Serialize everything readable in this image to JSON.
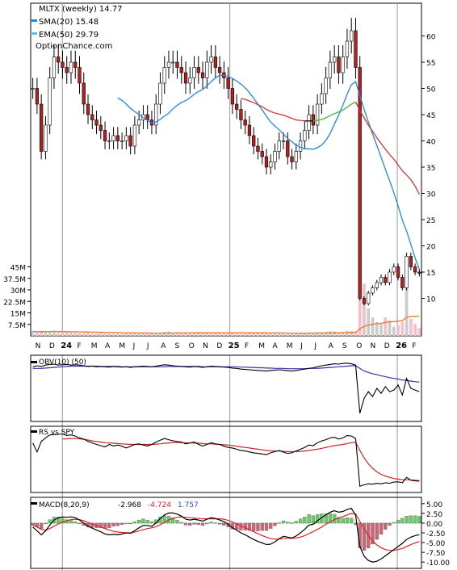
{
  "chart_data": {
    "type": "candlestick",
    "ticker": "MLTX",
    "period": "weekly",
    "last": "14.77",
    "header": {
      "title": "MLTX (weekly) 14.77",
      "sma_label": "SMA(20) 15.48",
      "ema_label": "EMA(50) 29.79",
      "source": "OptionChance.com"
    },
    "colors": {
      "up": "#ffffff",
      "down": "#b22222",
      "vol_up": "#cccccc",
      "vol_down": "#f2c0c8",
      "sma": "#2288dd",
      "ema_up": "#33bb33",
      "ema_dn": "#cc3333",
      "ema_flat": "#000000",
      "vol_avg": "#ee7722",
      "macd_pos": "#66cc66",
      "macd_neg": "#cc6677",
      "obv_sig": "#3333aa"
    },
    "price_axis": {
      "min": 5,
      "max": 65,
      "ticks": [
        "10",
        "15",
        "20",
        "25",
        "30",
        "35",
        "40",
        "45",
        "50",
        "55",
        "60"
      ]
    },
    "volume_axis": {
      "max_m": 50,
      "ticks": [
        "7.5M",
        "15M",
        "22.5M",
        "30M",
        "37.5M",
        "45M"
      ]
    },
    "x_axis": {
      "labels": [
        "N",
        "D",
        "24",
        "F",
        "M",
        "A",
        "M",
        "J",
        "J",
        "A",
        "S",
        "O",
        "N",
        "D",
        "25",
        "F",
        "M",
        "A",
        "M",
        "J",
        "J",
        "A",
        "S",
        "O",
        "N",
        "D",
        "26",
        "F"
      ],
      "bold": [
        "24",
        "25",
        "26"
      ]
    },
    "closes": [
      50,
      47,
      38,
      43,
      52,
      56,
      55,
      54,
      53,
      55,
      54,
      51,
      47,
      45,
      44,
      43,
      42,
      40,
      40,
      41,
      40,
      40,
      41,
      39,
      43,
      44,
      45,
      44,
      43,
      47,
      51,
      54,
      55,
      55,
      54,
      53,
      51,
      52,
      54,
      53,
      52,
      55,
      56,
      54,
      53,
      52,
      50,
      47,
      46,
      44,
      43,
      41,
      39,
      38,
      37,
      35,
      36,
      38,
      40,
      40,
      37,
      36,
      38,
      40,
      42,
      45,
      43,
      47,
      49,
      52,
      55,
      56,
      53,
      56,
      59,
      61,
      54,
      10,
      9,
      11,
      12,
      13,
      14,
      13,
      15,
      16,
      14,
      12,
      18,
      16,
      15,
      14.77
    ],
    "sma20": [
      null,
      null,
      null,
      null,
      null,
      null,
      null,
      null,
      null,
      null,
      null,
      null,
      null,
      null,
      null,
      null,
      null,
      null,
      null,
      null,
      48.2,
      47.7,
      47.0,
      46.2,
      45.6,
      45.0,
      44.4,
      43.9,
      43.4,
      43.6,
      44.1,
      44.7,
      45.3,
      46.1,
      46.8,
      47.3,
      47.7,
      48.2,
      48.9,
      49.4,
      49.8,
      50.5,
      51.3,
      52.0,
      52.5,
      52.5,
      52.3,
      51.9,
      51.4,
      50.8,
      50.1,
      49.2,
      48.1,
      47.0,
      45.9,
      44.7,
      43.6,
      42.8,
      42.1,
      41.3,
      40.5,
      39.8,
      39.2,
      38.8,
      38.5,
      38.5,
      38.4,
      38.7,
      39.2,
      40.1,
      41.4,
      43.2,
      44.9,
      46.8,
      48.9,
      50.7,
      51.3,
      48.6,
      46.0,
      43.6,
      41.3,
      39.1,
      36.9,
      34.6,
      32.4,
      30.1,
      27.6,
      24.9,
      22.8,
      20.3,
      17.7,
      15.48
    ],
    "ema50": [
      null,
      null,
      null,
      null,
      null,
      null,
      null,
      null,
      null,
      null,
      null,
      null,
      null,
      null,
      null,
      null,
      null,
      null,
      null,
      null,
      null,
      null,
      null,
      null,
      null,
      null,
      null,
      null,
      null,
      null,
      null,
      null,
      null,
      null,
      null,
      null,
      null,
      null,
      null,
      null,
      null,
      null,
      null,
      null,
      null,
      null,
      null,
      null,
      null,
      48.1,
      47.9,
      47.6,
      47.3,
      46.9,
      46.5,
      46.0,
      45.6,
      45.3,
      45.1,
      44.9,
      44.6,
      44.3,
      44.0,
      43.9,
      43.8,
      43.8,
      43.8,
      43.9,
      44.1,
      44.4,
      44.8,
      45.2,
      45.5,
      45.9,
      46.4,
      47.0,
      47.4,
      45.8,
      44.4,
      43.0,
      41.8,
      40.6,
      39.5,
      38.4,
      37.4,
      36.5,
      35.4,
      34.3,
      33.5,
      32.6,
      31.4,
      29.79
    ],
    "volume_m": [
      3,
      2.5,
      2.8,
      2.6,
      3.1,
      3.4,
      2.2,
      2.4,
      2.6,
      2.2,
      2.5,
      1.9,
      1.8,
      2.1,
      1.6,
      1.7,
      2.0,
      1.5,
      1.6,
      1.4,
      1.6,
      1.5,
      1.8,
      1.6,
      2.2,
      1.9,
      2.1,
      1.7,
      1.8,
      1.6,
      2.0,
      2.6,
      2.8,
      2.1,
      2.4,
      1.9,
      1.8,
      1.6,
      2.3,
      2.4,
      1.8,
      2.5,
      2.2,
      1.9,
      2.1,
      1.7,
      1.9,
      1.8,
      2.2,
      1.6,
      1.8,
      1.7,
      2.1,
      1.9,
      1.6,
      1.8,
      1.5,
      1.7,
      1.9,
      1.6,
      1.4,
      1.5,
      1.8,
      2.0,
      1.7,
      2.3,
      1.9,
      2.4,
      2.2,
      2.6,
      3.0,
      2.8,
      2.4,
      2.7,
      3.3,
      3.1,
      2.9,
      48,
      34,
      18,
      12,
      9,
      8,
      12,
      10,
      6,
      7,
      9,
      46,
      11,
      8,
      5
    ],
    "macd": {
      "label": "MACD(8,20,9)",
      "values": [
        "-2.968",
        "-4.724",
        "1.757"
      ],
      "axis_ticks": [
        "5.00",
        "2.50",
        "0.00",
        "-2.50",
        "-5.00",
        "-7.50",
        "-10.00"
      ],
      "range": [
        -11,
        6
      ],
      "line": [
        -1,
        -2,
        -3,
        -2,
        -0.5,
        0.8,
        1.4,
        1.6,
        1.5,
        1.6,
        1.4,
        0.8,
        0,
        -0.8,
        -1.3,
        -1.8,
        -2.2,
        -2.8,
        -3,
        -2.9,
        -3,
        -2.8,
        -2.5,
        -2.6,
        -1.9,
        -1.2,
        -0.6,
        -0.6,
        -0.8,
        0,
        1.2,
        2.1,
        2.6,
        2.6,
        2.3,
        1.8,
        1.0,
        0.8,
        1.0,
        0.8,
        0.5,
        1.0,
        1.4,
        1.2,
        0.8,
        0.4,
        -0.3,
        -1.2,
        -1.8,
        -2.5,
        -3.0,
        -3.6,
        -4.2,
        -4.7,
        -5.1,
        -5.5,
        -5.4,
        -4.8,
        -4.0,
        -3.4,
        -3.6,
        -3.8,
        -3.3,
        -2.5,
        -1.6,
        -0.5,
        -0.3,
        0.6,
        1.4,
        2.1,
        2.8,
        3.2,
        2.8,
        3.0,
        3.5,
        3.8,
        2.0,
        -6,
        -8.5,
        -9.6,
        -10.0,
        -9.8,
        -9.2,
        -8.4,
        -7.6,
        -6.8,
        -6.0,
        -5.2,
        -4.2,
        -3.6,
        -3.2,
        -2.968
      ],
      "signal": [
        -0.5,
        -1,
        -1.6,
        -1.8,
        -1.4,
        -0.8,
        -0.2,
        0.3,
        0.6,
        0.9,
        1.0,
        0.9,
        0.6,
        0.2,
        -0.2,
        -0.6,
        -1.0,
        -1.4,
        -1.8,
        -2.1,
        -2.3,
        -2.4,
        -2.5,
        -2.5,
        -2.3,
        -2.0,
        -1.7,
        -1.4,
        -1.2,
        -0.9,
        -0.4,
        0.2,
        0.8,
        1.2,
        1.5,
        1.6,
        1.5,
        1.4,
        1.3,
        1.2,
        1.1,
        1.1,
        1.1,
        1.1,
        1.1,
        1.0,
        0.7,
        0.3,
        -0.2,
        -0.7,
        -1.2,
        -1.7,
        -2.2,
        -2.7,
        -3.2,
        -3.6,
        -4.0,
        -4.1,
        -4.1,
        -4.0,
        -3.9,
        -3.9,
        -3.8,
        -3.6,
        -3.2,
        -2.7,
        -2.2,
        -1.6,
        -1.0,
        -0.3,
        0.3,
        0.9,
        1.3,
        1.7,
        2.1,
        2.5,
        2.4,
        0.4,
        -1.5,
        -3.2,
        -4.6,
        -5.6,
        -6.3,
        -6.8,
        -7.0,
        -7.0,
        -6.8,
        -6.5,
        -6.0,
        -5.5,
        -5.1,
        -4.724
      ]
    },
    "obv": {
      "label": "OBV(10) (50)",
      "line": [
        0.55,
        0.58,
        0.56,
        0.6,
        0.62,
        0.63,
        0.6,
        0.61,
        0.62,
        0.6,
        0.61,
        0.6,
        0.58,
        0.56,
        0.57,
        0.55,
        0.56,
        0.55,
        0.54,
        0.56,
        0.55,
        0.54,
        0.55,
        0.53,
        0.55,
        0.56,
        0.57,
        0.56,
        0.55,
        0.57,
        0.59,
        0.61,
        0.6,
        0.58,
        0.57,
        0.56,
        0.55,
        0.54,
        0.56,
        0.55,
        0.53,
        0.55,
        0.57,
        0.56,
        0.55,
        0.54,
        0.53,
        0.51,
        0.5,
        0.48,
        0.47,
        0.46,
        0.45,
        0.44,
        0.43,
        0.42,
        0.44,
        0.45,
        0.46,
        0.45,
        0.43,
        0.42,
        0.44,
        0.46,
        0.48,
        0.5,
        0.52,
        0.55,
        0.58,
        0.6,
        0.62,
        0.64,
        0.63,
        0.65,
        0.66,
        0.64,
        0.6,
        -0.85,
        -0.4,
        -0.2,
        -0.35,
        -0.1,
        -0.25,
        -0.05,
        -0.2,
        -0.15,
        0,
        -0.3,
        0.2,
        -0.1,
        -0.15,
        -0.2
      ],
      "signal": [
        0.5,
        0.5,
        0.5,
        0.51,
        0.52,
        0.53,
        0.54,
        0.55,
        0.56,
        0.57,
        0.57,
        0.57,
        0.57,
        0.57,
        0.57,
        0.57,
        0.56,
        0.56,
        0.56,
        0.56,
        0.56,
        0.55,
        0.55,
        0.55,
        0.55,
        0.55,
        0.55,
        0.55,
        0.55,
        0.55,
        0.55,
        0.55,
        0.56,
        0.56,
        0.56,
        0.56,
        0.56,
        0.56,
        0.56,
        0.56,
        0.55,
        0.55,
        0.55,
        0.55,
        0.55,
        0.55,
        0.55,
        0.55,
        0.55,
        0.54,
        0.54,
        0.53,
        0.53,
        0.52,
        0.52,
        0.51,
        0.51,
        0.5,
        0.5,
        0.5,
        0.49,
        0.49,
        0.49,
        0.49,
        0.49,
        0.5,
        0.5,
        0.5,
        0.51,
        0.52,
        0.53,
        0.54,
        0.55,
        0.56,
        0.57,
        0.58,
        0.58,
        0.5,
        0.42,
        0.38,
        0.34,
        0.31,
        0.28,
        0.25,
        0.22,
        0.2,
        0.18,
        0.15,
        0.14,
        0.12,
        0.1,
        0.09
      ],
      "range": [
        -1,
        0.8
      ]
    },
    "rs": {
      "label": "RS vs SPY",
      "line": [
        0.55,
        0.25,
        0.6,
        0.72,
        0.82,
        null,
        null,
        0.85,
        0.8,
        0.82,
        0.78,
        0.72,
        0.68,
        0.6,
        0.55,
        0.5,
        0.46,
        0.42,
        0.5,
        0.45,
        0.48,
        0.44,
        0.38,
        0.44,
        0.5,
        0.52,
        0.48,
        0.45,
        0.5,
        0.58,
        0.64,
        0.7,
        0.66,
        0.62,
        0.6,
        0.58,
        0.52,
        0.55,
        0.58,
        0.5,
        0.45,
        0.5,
        0.56,
        0.52,
        0.5,
        0.44,
        0.4,
        0.38,
        0.34,
        0.3,
        0.28,
        0.25,
        0.22,
        0.2,
        0.18,
        0.16,
        0.22,
        0.26,
        0.3,
        0.24,
        0.2,
        0.22,
        0.28,
        0.34,
        0.4,
        0.48,
        0.46,
        0.56,
        0.62,
        0.66,
        0.72,
        0.74,
        0.68,
        0.72,
        0.8,
        0.78,
        0.7,
        -0.9,
        -0.85,
        -0.82,
        -0.83,
        -0.8,
        -0.82,
        -0.78,
        -0.8,
        -0.76,
        -0.75,
        -0.78,
        -0.6,
        -0.7,
        -0.72,
        -0.73
      ],
      "signal": [
        null,
        null,
        null,
        null,
        null,
        null,
        null,
        0.68,
        0.69,
        0.7,
        0.7,
        0.69,
        0.67,
        0.65,
        0.62,
        0.6,
        0.58,
        0.56,
        0.55,
        0.54,
        0.53,
        0.52,
        0.51,
        0.5,
        0.5,
        0.5,
        0.5,
        0.5,
        0.5,
        0.51,
        0.52,
        0.54,
        0.55,
        0.56,
        0.56,
        0.56,
        0.55,
        0.55,
        0.55,
        0.54,
        0.53,
        0.52,
        0.52,
        0.51,
        0.5,
        0.49,
        0.48,
        0.46,
        0.44,
        0.42,
        0.4,
        0.38,
        0.36,
        0.34,
        0.32,
        0.3,
        0.29,
        0.28,
        0.28,
        0.27,
        0.26,
        0.26,
        0.26,
        0.27,
        0.28,
        0.3,
        0.32,
        0.34,
        0.37,
        0.4,
        0.43,
        0.46,
        0.48,
        0.5,
        0.53,
        0.56,
        0.58,
        0.3,
        0.05,
        -0.15,
        -0.3,
        -0.42,
        -0.5,
        -0.56,
        -0.6,
        -0.64,
        -0.66,
        -0.68,
        -0.68,
        -0.69,
        -0.7,
        -0.71
      ],
      "range": [
        -1,
        1
      ]
    }
  }
}
